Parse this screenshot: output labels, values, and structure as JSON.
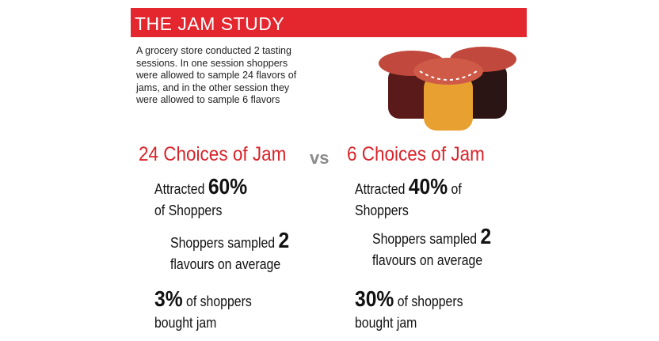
{
  "header": {
    "title": "THE JAM STUDY"
  },
  "intro": [
    "A grocery store conducted 2 tasting",
    "sessions. In one session shoppers",
    "were allowed to sample 24 flavors of",
    "jams, and in the other session they",
    "were allowed to sample 6 flavors"
  ],
  "separator": "vs",
  "columns": [
    {
      "heading": "24 Choices of Jam",
      "attracted": {
        "prefix": "Attracted",
        "value": "60%",
        "rest": "of Shoppers"
      },
      "sampled": {
        "prefix": "Shoppers sampled",
        "value": "2",
        "rest": "flavours on average"
      },
      "bought": {
        "value": "3%",
        "suffix": "of shoppers",
        "rest": "bought jam"
      }
    },
    {
      "heading": "6 Choices of Jam",
      "attracted": {
        "prefix": "Attracted",
        "value": "40%",
        "suffix": "of",
        "rest": "Shoppers"
      },
      "sampled": {
        "prefix": "Shoppers sampled",
        "value": "2",
        "rest": "flavours on average"
      },
      "bought": {
        "value": "30%",
        "suffix": "of shoppers",
        "rest": "bought jam"
      }
    }
  ]
}
